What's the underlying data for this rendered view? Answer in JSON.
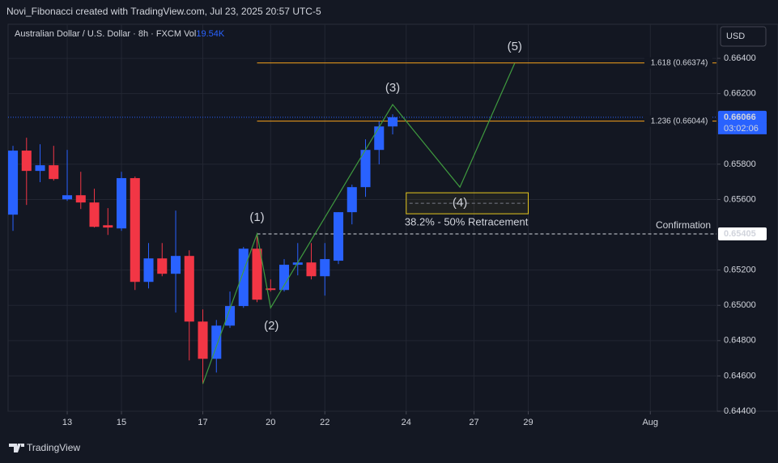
{
  "header": {
    "text": "Novi_Fibonacci created with TradingView.com, Jul 23, 2025 20:57 UTC-5"
  },
  "footer": {
    "brand": "TradingView"
  },
  "currency_button": "USD",
  "chart_data": {
    "type": "candlestick",
    "symbol": "Australian Dollar / U.S. Dollar · 8h · FXCM",
    "volume_label": "Vol",
    "volume_value": "19.54K",
    "x": [
      0,
      1,
      2,
      3,
      4,
      5,
      6,
      7,
      8,
      9,
      10,
      11,
      12,
      13,
      14,
      15,
      16,
      17,
      18,
      19,
      20,
      21,
      22,
      23,
      24,
      25,
      26,
      27,
      28
    ],
    "open": [
      0.65514,
      0.65877,
      0.65762,
      0.65794,
      0.65601,
      0.65624,
      0.65583,
      0.65454,
      0.65436,
      0.65721,
      0.65133,
      0.65266,
      0.65179,
      0.6528,
      0.64908,
      0.64697,
      0.64885,
      0.64996,
      0.65321,
      0.65096,
      0.65087,
      0.6523,
      0.65243,
      0.65165,
      0.65253,
      0.65528,
      0.6567,
      0.65881,
      0.66014
    ],
    "high": [
      0.65904,
      0.6595,
      0.65913,
      0.65904,
      0.65881,
      0.65757,
      0.65661,
      0.65551,
      0.65757,
      0.6573,
      0.65353,
      0.65353,
      0.65537,
      0.65312,
      0.64977,
      0.64917,
      0.65078,
      0.65331,
      0.65405,
      0.65147,
      0.65262,
      0.65353,
      0.65353,
      0.65353,
      0.65528,
      0.65684,
      0.65941,
      0.66042,
      0.66083
    ],
    "low": [
      0.65422,
      0.65569,
      0.65698,
      0.65707,
      0.65592,
      0.65546,
      0.65441,
      0.65399,
      0.65422,
      0.65087,
      0.65096,
      0.65165,
      0.64959,
      0.64688,
      0.64555,
      0.64619,
      0.64872,
      0.64986,
      0.65018,
      0.65078,
      0.65078,
      0.6517,
      0.65147,
      0.65055,
      0.65234,
      0.65459,
      0.65615,
      0.65799,
      0.65969
    ],
    "close": [
      0.65877,
      0.65762,
      0.65794,
      0.65716,
      0.65624,
      0.65583,
      0.65445,
      0.65441,
      0.65721,
      0.65133,
      0.65266,
      0.65179,
      0.6528,
      0.64908,
      0.64697,
      0.64885,
      0.64996,
      0.65321,
      0.65032,
      0.65087,
      0.6523,
      0.65243,
      0.65165,
      0.65262,
      0.65528,
      0.6567,
      0.65881,
      0.66014,
      0.66066
    ],
    "up_color": "#2962ff",
    "down_color": "#f23645",
    "xlim": [
      -0.36,
      51.88
    ],
    "xticks": [
      {
        "value": 4,
        "label": "13"
      },
      {
        "value": 8,
        "label": "15"
      },
      {
        "value": 14,
        "label": "17"
      },
      {
        "value": 19,
        "label": "20"
      },
      {
        "value": 23,
        "label": "22"
      },
      {
        "value": 29,
        "label": "24"
      },
      {
        "value": 34,
        "label": "27"
      },
      {
        "value": 38,
        "label": "29"
      },
      {
        "value": 47,
        "label": "Aug"
      }
    ],
    "ylim": [
      0.644,
      0.66593
    ],
    "yticks": [
      {
        "value": 0.664,
        "label": "0.66400"
      },
      {
        "value": 0.662,
        "label": "0.66200"
      },
      {
        "value": 0.658,
        "label": "0.65800"
      },
      {
        "value": 0.656,
        "label": "0.65600"
      },
      {
        "value": 0.652,
        "label": "0.65200"
      },
      {
        "value": 0.65,
        "label": "0.65000"
      },
      {
        "value": 0.648,
        "label": "0.64800"
      },
      {
        "value": 0.646,
        "label": "0.64600"
      },
      {
        "value": 0.644,
        "label": "0.64400"
      }
    ],
    "grid": true,
    "last_price": {
      "value": 0.66066,
      "label": "0.66066",
      "countdown": "03:02:06",
      "color": "#2962ff"
    },
    "fib_color": "#f7a21b",
    "fib_levels": [
      {
        "value": 0.66374,
        "label": "1.618 (0.66374)",
        "x_start": 18
      },
      {
        "value": 0.66044,
        "label": "1.236 (0.66044)",
        "x_start": 18
      }
    ],
    "confirmation": {
      "value": 0.65405,
      "label": "Confirmation",
      "price_label": "0.65405",
      "x_start": 18
    },
    "wave": {
      "color": "#3f9a3f",
      "label_color": "#19e619",
      "x": [
        14,
        18,
        19,
        28,
        32.96,
        37
      ],
      "y": [
        0.64555,
        0.65405,
        0.64986,
        0.66138,
        0.6567,
        0.66372
      ],
      "labels": [
        null,
        "(1)",
        "(2)",
        "(3)",
        "(4)",
        "(5)"
      ]
    },
    "retracement_zone": {
      "x": [
        29,
        38
      ],
      "y": [
        0.65519,
        0.65638
      ],
      "label": "38.2% - 50% Retracement",
      "color": "#e6c71e"
    }
  }
}
